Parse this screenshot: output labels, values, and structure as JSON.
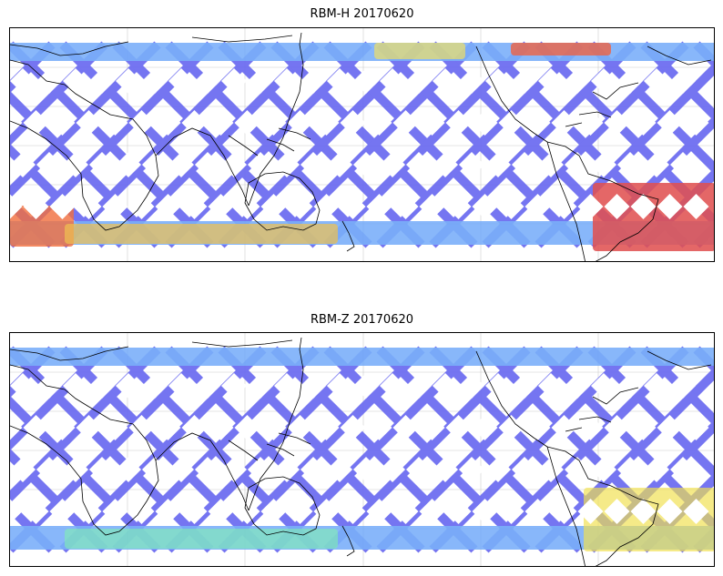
{
  "figure": {
    "panels": [
      {
        "id": "top",
        "title": "RBM-H 20170620",
        "colormap": "jet",
        "background_swath_color": "#6a6af0",
        "hotspots": [
          {
            "region": "south-east-pacific-atlantic",
            "color": "#e05050",
            "level": 0.95
          },
          {
            "region": "south-west-indian",
            "color": "#f07040",
            "level": 0.85
          },
          {
            "region": "north-atlantic-band",
            "color": "#f06040",
            "level": 0.8
          },
          {
            "region": "north-pacific-band",
            "color": "#f0e060",
            "level": 0.6
          },
          {
            "region": "southern-ocean-band",
            "color": "#f0c050",
            "level": 0.65
          }
        ]
      },
      {
        "id": "bottom",
        "title": "RBM-Z 20170620",
        "colormap": "jet",
        "background_swath_color": "#6a6af0",
        "hotspots": [
          {
            "region": "south-atlantic",
            "color": "#f0e050",
            "level": 0.6
          },
          {
            "region": "southern-ocean-band",
            "color": "#80f0b0",
            "level": 0.45
          }
        ]
      }
    ]
  }
}
